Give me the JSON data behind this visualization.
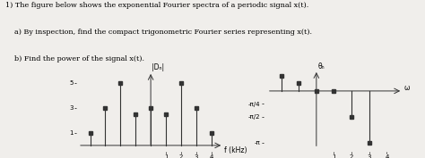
{
  "title_line1": "1) The figure below shows the exponential Fourier spectra of a periodic signal x(t).",
  "title_line2a": "    a) By inspection, find the compact trigonometric Fourier series representing x(t).",
  "title_line2b": "    b) Find the power of the signal x(t).",
  "left_freqs": [
    -4,
    -3,
    -2,
    -1,
    0,
    1,
    2,
    3,
    4
  ],
  "left_heights": [
    1,
    3,
    5,
    2.5,
    3,
    2.5,
    5,
    3,
    1
  ],
  "left_ylabel": "|Dₙ|",
  "left_xlabel": "f (kHz)",
  "left_yticks": [
    1,
    3,
    5
  ],
  "left_xticks": [
    1,
    2,
    3,
    4
  ],
  "right_freqs": [
    -2,
    -1,
    0,
    1,
    2,
    3
  ],
  "right_heights": [
    0.9,
    0.5,
    0,
    0,
    -1.5708,
    -3.14159
  ],
  "right_ylabel": "θₙ",
  "right_xlabel": "ω",
  "right_yticks": [
    -3.14159,
    -1.5708,
    -0.7854
  ],
  "right_yticklabels": [
    "-π",
    "-π/2",
    "-π/4"
  ],
  "right_xticks": [
    1,
    2,
    3,
    4
  ],
  "bg_color": "#f0eeeb",
  "stem_color": "#333333",
  "text_color": "#000000"
}
